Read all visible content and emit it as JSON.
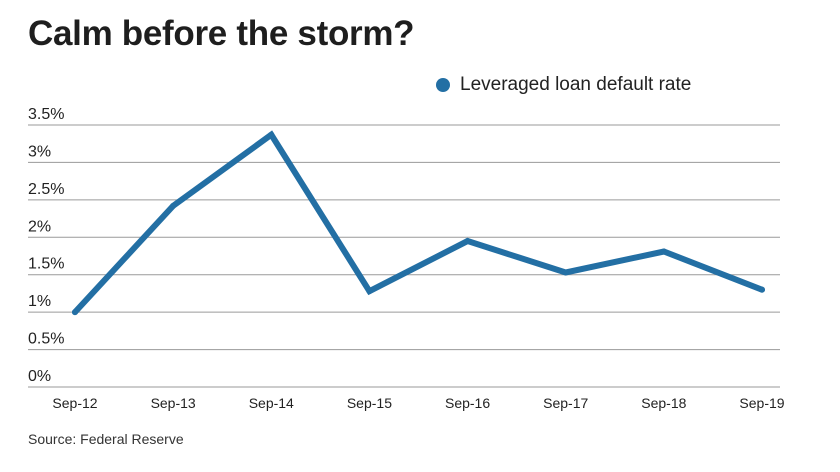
{
  "title": "Calm before the storm?",
  "source": "Source: Federal Reserve",
  "colors": {
    "line": "#236fa4",
    "grid": "#9a9a9a",
    "text": "#222222"
  },
  "chart_data": {
    "type": "line",
    "title": "Calm before the storm?",
    "categories": [
      "Sep-12",
      "Sep-13",
      "Sep-14",
      "Sep-15",
      "Sep-16",
      "Sep-17",
      "Sep-18",
      "Sep-19"
    ],
    "series": [
      {
        "name": "Leveraged loan default rate",
        "values": [
          1.0,
          2.42,
          3.37,
          1.28,
          1.95,
          1.53,
          1.81,
          1.3
        ]
      }
    ],
    "yticks": [
      "0%",
      "0.5%",
      "1%",
      "1.5%",
      "2%",
      "2.5%",
      "3%",
      "3.5%"
    ],
    "ylim": [
      0,
      3.5
    ],
    "grid": true,
    "legend_position": "top-right",
    "xlabel": "",
    "ylabel": ""
  }
}
